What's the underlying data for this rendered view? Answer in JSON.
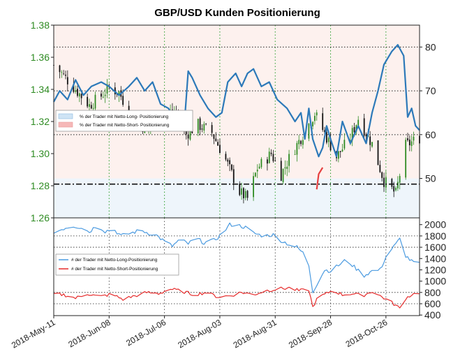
{
  "chart_data": [
    {
      "type": "candlestick-with-line",
      "title": "GBP/USD Kunden Positionierung",
      "x_dates": [
        "2018-05-11",
        "2018-06-08",
        "2018-07-06",
        "2018-08-03",
        "2018-08-31",
        "2018-09-28",
        "2018-10-26"
      ],
      "x_tick_labels": [
        "2018-May-11",
        "2018-Jun-08",
        "2018-Jul-06",
        "2018-Aug-03",
        "2018-Aug-31",
        "2018-Sep-28",
        "2018-Oct-26"
      ],
      "date_range": [
        "2018-05-11",
        "2018-11-12"
      ],
      "left_axis": {
        "label": "",
        "range": [
          1.26,
          1.38
        ],
        "ticks": [
          "1.26",
          "1.28",
          "1.30",
          "1.32",
          "1.34",
          "1.36",
          "1.38"
        ],
        "color": "#2e8b22"
      },
      "right_axis": {
        "label": "",
        "range": [
          41,
          85
        ],
        "ticks": [
          "50",
          "60",
          "70",
          "80"
        ]
      },
      "dashed_hlines_right": [
        50,
        60,
        70,
        80
      ],
      "dashdot_hline_left": 1.281,
      "candle_close_anchors": [
        [
          "2018-05-11",
          1.355
        ],
        [
          "2018-05-15",
          1.35
        ],
        [
          "2018-05-22",
          1.34
        ],
        [
          "2018-05-29",
          1.33
        ],
        [
          "2018-06-04",
          1.336
        ],
        [
          "2018-06-08",
          1.341
        ],
        [
          "2018-06-13",
          1.338
        ],
        [
          "2018-06-20",
          1.322
        ],
        [
          "2018-06-27",
          1.315
        ],
        [
          "2018-07-02",
          1.32
        ],
        [
          "2018-07-06",
          1.324
        ],
        [
          "2018-07-11",
          1.326
        ],
        [
          "2018-07-17",
          1.312
        ],
        [
          "2018-07-23",
          1.318
        ],
        [
          "2018-07-30",
          1.313
        ],
        [
          "2018-08-06",
          1.296
        ],
        [
          "2018-08-13",
          1.276
        ],
        [
          "2018-08-17",
          1.272
        ],
        [
          "2018-08-22",
          1.291
        ],
        [
          "2018-08-29",
          1.3
        ],
        [
          "2018-09-03",
          1.287
        ],
        [
          "2018-09-07",
          1.297
        ],
        [
          "2018-09-14",
          1.312
        ],
        [
          "2018-09-20",
          1.325
        ],
        [
          "2018-09-26",
          1.31
        ],
        [
          "2018-10-01",
          1.298
        ],
        [
          "2018-10-08",
          1.31
        ],
        [
          "2018-10-12",
          1.322
        ],
        [
          "2018-10-19",
          1.306
        ],
        [
          "2018-10-25",
          1.283
        ],
        [
          "2018-10-31",
          1.275
        ],
        [
          "2018-11-05",
          1.305
        ],
        [
          "2018-11-12",
          1.31
        ]
      ],
      "long_pct_anchors": [
        [
          "2018-05-11",
          67.5
        ],
        [
          "2018-05-14",
          70
        ],
        [
          "2018-05-18",
          68
        ],
        [
          "2018-05-22",
          72.5
        ],
        [
          "2018-05-26",
          69
        ],
        [
          "2018-05-30",
          71
        ],
        [
          "2018-06-04",
          72
        ],
        [
          "2018-06-08",
          71
        ],
        [
          "2018-06-13",
          69
        ],
        [
          "2018-06-18",
          71
        ],
        [
          "2018-06-22",
          73
        ],
        [
          "2018-06-26",
          70
        ],
        [
          "2018-06-30",
          72
        ],
        [
          "2018-07-04",
          67
        ],
        [
          "2018-07-08",
          66
        ],
        [
          "2018-07-12",
          63
        ],
        [
          "2018-07-16",
          62
        ],
        [
          "2018-07-18",
          74.5
        ],
        [
          "2018-07-20",
          73
        ],
        [
          "2018-07-24",
          69
        ],
        [
          "2018-07-28",
          66
        ],
        [
          "2018-08-01",
          64
        ],
        [
          "2018-08-04",
          65
        ],
        [
          "2018-08-07",
          72
        ],
        [
          "2018-08-11",
          74
        ],
        [
          "2018-08-14",
          71
        ],
        [
          "2018-08-17",
          74
        ],
        [
          "2018-08-20",
          75
        ],
        [
          "2018-08-24",
          71
        ],
        [
          "2018-08-28",
          72
        ],
        [
          "2018-09-01",
          68
        ],
        [
          "2018-09-06",
          66
        ],
        [
          "2018-09-10",
          63
        ],
        [
          "2018-09-13",
          65
        ],
        [
          "2018-09-15",
          59
        ],
        [
          "2018-09-17",
          66
        ],
        [
          "2018-09-19",
          59
        ],
        [
          "2018-09-22",
          55
        ],
        [
          "2018-09-24",
          57
        ],
        [
          "2018-09-26",
          62
        ],
        [
          "2018-09-28",
          59
        ],
        [
          "2018-10-01",
          55
        ],
        [
          "2018-10-04",
          63
        ],
        [
          "2018-10-08",
          58
        ],
        [
          "2018-10-12",
          62
        ],
        [
          "2018-10-16",
          58
        ],
        [
          "2018-10-19",
          65
        ],
        [
          "2018-10-22",
          70
        ],
        [
          "2018-10-25",
          76
        ],
        [
          "2018-10-29",
          79
        ],
        [
          "2018-11-01",
          80.5
        ],
        [
          "2018-11-04",
          78
        ],
        [
          "2018-11-06",
          64
        ],
        [
          "2018-11-08",
          66
        ],
        [
          "2018-11-10",
          62
        ],
        [
          "2018-11-12",
          61
        ]
      ],
      "short_pct_anchors": [
        [
          "2018-09-21",
          47.5
        ],
        [
          "2018-09-22",
          51
        ],
        [
          "2018-09-24",
          52.5
        ]
      ],
      "legend": [
        "% der Trader mit Netto-Long- Positionierung",
        "% der Trader mit Netto-Short- Positionierung"
      ],
      "legend_colors": [
        "#cfe4f5",
        "#f6b8b8"
      ],
      "line_color": "#2c79b9"
    },
    {
      "type": "line",
      "y_range": [
        390,
        2120
      ],
      "y_ticks": [
        "400",
        "600",
        "800",
        "1000",
        "1200",
        "1400",
        "1600",
        "1800",
        "2000"
      ],
      "dashed_hlines": [
        600,
        800,
        1600,
        1800
      ],
      "series": [
        {
          "name": "# der Trader mit Netto-Long-Positionierung",
          "color": "#4a9ae0",
          "anchors": [
            [
              "2018-05-11",
              1850
            ],
            [
              "2018-05-15",
              1920
            ],
            [
              "2018-05-20",
              1980
            ],
            [
              "2018-05-25",
              1950
            ],
            [
              "2018-05-29",
              1870
            ],
            [
              "2018-06-02",
              2000
            ],
            [
              "2018-06-06",
              1880
            ],
            [
              "2018-06-10",
              1930
            ],
            [
              "2018-06-14",
              1800
            ],
            [
              "2018-06-19",
              1850
            ],
            [
              "2018-06-24",
              1900
            ],
            [
              "2018-06-28",
              1850
            ],
            [
              "2018-07-02",
              1810
            ],
            [
              "2018-07-06",
              1700
            ],
            [
              "2018-07-10",
              1620
            ],
            [
              "2018-07-14",
              1740
            ],
            [
              "2018-07-18",
              1660
            ],
            [
              "2018-07-22",
              1760
            ],
            [
              "2018-07-26",
              1680
            ],
            [
              "2018-07-31",
              1720
            ],
            [
              "2018-08-04",
              1830
            ],
            [
              "2018-08-08",
              2000
            ],
            [
              "2018-08-12",
              1990
            ],
            [
              "2018-08-16",
              1950
            ],
            [
              "2018-08-20",
              1850
            ],
            [
              "2018-08-25",
              1800
            ],
            [
              "2018-08-30",
              1820
            ],
            [
              "2018-09-03",
              1720
            ],
            [
              "2018-09-07",
              1650
            ],
            [
              "2018-09-11",
              1600
            ],
            [
              "2018-09-14",
              1500
            ],
            [
              "2018-09-17",
              1280
            ],
            [
              "2018-09-19",
              820
            ],
            [
              "2018-09-22",
              1000
            ],
            [
              "2018-09-25",
              1200
            ],
            [
              "2018-09-28",
              1180
            ],
            [
              "2018-10-02",
              1280
            ],
            [
              "2018-10-06",
              1380
            ],
            [
              "2018-10-10",
              1250
            ],
            [
              "2018-10-15",
              1100
            ],
            [
              "2018-10-19",
              1180
            ],
            [
              "2018-10-23",
              1200
            ],
            [
              "2018-10-27",
              1500
            ],
            [
              "2018-10-31",
              1650
            ],
            [
              "2018-11-03",
              1800
            ],
            [
              "2018-11-05",
              1450
            ],
            [
              "2018-11-08",
              1350
            ],
            [
              "2018-11-12",
              1300
            ]
          ]
        },
        {
          "name": "# der Trader mit Netto-Short-Positionierung",
          "color": "#e62b2b",
          "anchors": [
            [
              "2018-05-11",
              770
            ],
            [
              "2018-05-16",
              760
            ],
            [
              "2018-05-22",
              700
            ],
            [
              "2018-05-28",
              780
            ],
            [
              "2018-06-03",
              720
            ],
            [
              "2018-06-09",
              770
            ],
            [
              "2018-06-15",
              680
            ],
            [
              "2018-06-21",
              740
            ],
            [
              "2018-06-27",
              800
            ],
            [
              "2018-07-03",
              780
            ],
            [
              "2018-07-09",
              860
            ],
            [
              "2018-07-15",
              820
            ],
            [
              "2018-07-21",
              760
            ],
            [
              "2018-07-27",
              800
            ],
            [
              "2018-08-02",
              720
            ],
            [
              "2018-08-08",
              740
            ],
            [
              "2018-08-14",
              800
            ],
            [
              "2018-08-20",
              760
            ],
            [
              "2018-08-26",
              830
            ],
            [
              "2018-09-01",
              860
            ],
            [
              "2018-09-07",
              880
            ],
            [
              "2018-09-12",
              830
            ],
            [
              "2018-09-17",
              850
            ],
            [
              "2018-09-19",
              540
            ],
            [
              "2018-09-22",
              740
            ],
            [
              "2018-09-25",
              760
            ],
            [
              "2018-09-29",
              840
            ],
            [
              "2018-10-04",
              760
            ],
            [
              "2018-10-09",
              780
            ],
            [
              "2018-10-14",
              740
            ],
            [
              "2018-10-19",
              820
            ],
            [
              "2018-10-24",
              720
            ],
            [
              "2018-10-29",
              620
            ],
            [
              "2018-11-02",
              520
            ],
            [
              "2018-11-05",
              700
            ],
            [
              "2018-11-08",
              760
            ],
            [
              "2018-11-12",
              800
            ]
          ]
        }
      ]
    }
  ]
}
